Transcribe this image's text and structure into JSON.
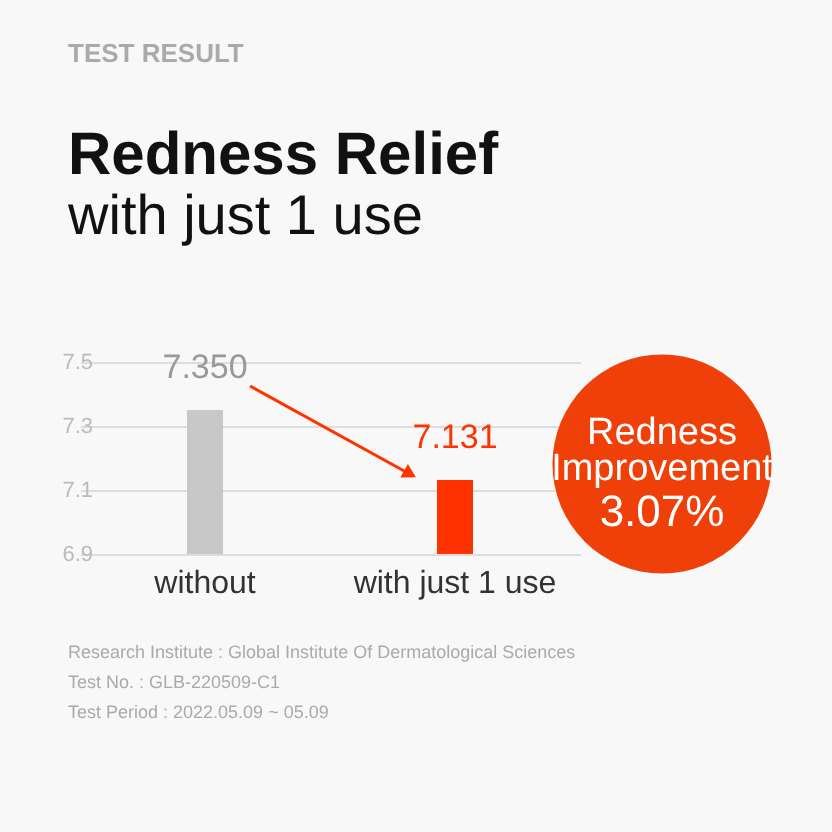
{
  "chart_data": {
    "type": "bar",
    "title": "Redness Relief",
    "subtitle": "with just 1 use",
    "categories": [
      "without",
      "with just 1 use"
    ],
    "values": [
      7.35,
      7.131
    ],
    "value_labels": [
      "7.350",
      "7.131"
    ],
    "colors": [
      "#c8c8c8",
      "#ff3300"
    ],
    "ylim": [
      6.9,
      7.5
    ],
    "yticks": [
      6.9,
      7.1,
      7.3,
      7.5
    ],
    "grid": "y",
    "annotations": [
      "TEST RESULT",
      "Redness Improvement",
      "3.07%",
      "Research Institute : Global Institute Of Dermatological Sciences",
      "Test No. : GLB-220509-C1",
      "Test Period : 2022.05.09 ~ 05.09"
    ]
  }
}
